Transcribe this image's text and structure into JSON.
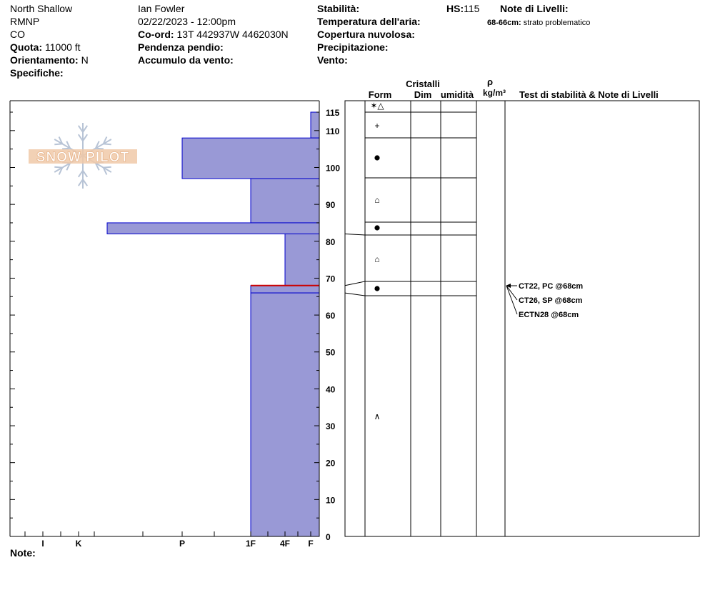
{
  "header": {
    "location": "North Shallow",
    "range": "RMNP",
    "state": "CO",
    "quota_label": "Quota:",
    "quota_value": "11000 ft",
    "orientamento_label": "Orientamento:",
    "orientamento_value": "N",
    "specifiche_label": "Specifiche:",
    "observer": "Ian Fowler",
    "datetime": "02/22/2023 - 12:00pm",
    "coord_label": "Co-ord:",
    "coord_value": "13T 442937W 4462030N",
    "pendenza_label": "Pendenza pendio:",
    "accumulo_label": "Accumulo da vento:",
    "stabilita_label": "Stabilità:",
    "temperatura_label": "Temperatura dell'aria:",
    "copertura_label": "Copertura nuvolosa:",
    "precipitazione_label": "Precipitazione:",
    "vento_label": "Vento:",
    "hs_label": "HS:",
    "hs_value": "115",
    "note_livelli_label": "Note di Livelli:",
    "problem_range": "68-66cm:",
    "problem_text": "strato problematico"
  },
  "logo": {
    "text": "SNOW PILOT"
  },
  "columns": {
    "cristalli": "Cristalli",
    "form": "Form",
    "dim": "Dim",
    "umidita": "umidità",
    "rho": "ρ",
    "density_unit": "kg/m³",
    "tests_notes": "Test di stabilità & Note di Livelli"
  },
  "footer": {
    "note_label": "Note:"
  },
  "colors": {
    "hardness_fill": "#9999d6",
    "hardness_stroke": "#0000cc",
    "problem_layer": "#cc0000"
  },
  "chart_data": {
    "type": "bar",
    "title": "",
    "y_axis": {
      "range": [
        0,
        115
      ],
      "ticks": [
        0,
        10,
        20,
        30,
        40,
        50,
        60,
        70,
        80,
        90,
        100,
        110,
        115
      ]
    },
    "x_axis": {
      "categories": [
        "I",
        "K",
        "P",
        "1F",
        "4F",
        "F"
      ],
      "direction": "reversed hardness"
    },
    "layers": [
      {
        "top": 115,
        "bottom": 108,
        "hardness": "F"
      },
      {
        "top": 108,
        "bottom": 97,
        "hardness": "P"
      },
      {
        "top": 97,
        "bottom": 85,
        "hardness": "1F"
      },
      {
        "top": 85,
        "bottom": 82,
        "hardness": "K+"
      },
      {
        "top": 82,
        "bottom": 68,
        "hardness": "4F"
      },
      {
        "top": 68,
        "bottom": 66,
        "hardness": "1F",
        "problem": true
      },
      {
        "top": 66,
        "bottom": 0,
        "hardness": "1F"
      }
    ],
    "grain_symbols": [
      {
        "at": 115,
        "form": "✶△"
      },
      {
        "at": 111,
        "form": "+"
      },
      {
        "at": 102,
        "form": "●"
      },
      {
        "at": 91,
        "form": "⌂"
      },
      {
        "at": 83.5,
        "form": "●"
      },
      {
        "at": 75,
        "form": "⌂"
      },
      {
        "at": 67,
        "form": "●"
      },
      {
        "at": 32,
        "form": "∧"
      }
    ],
    "stability_tests": [
      "CT22, PC @68cm",
      "CT26, SP @68cm",
      "ECTN28 @68cm"
    ]
  }
}
